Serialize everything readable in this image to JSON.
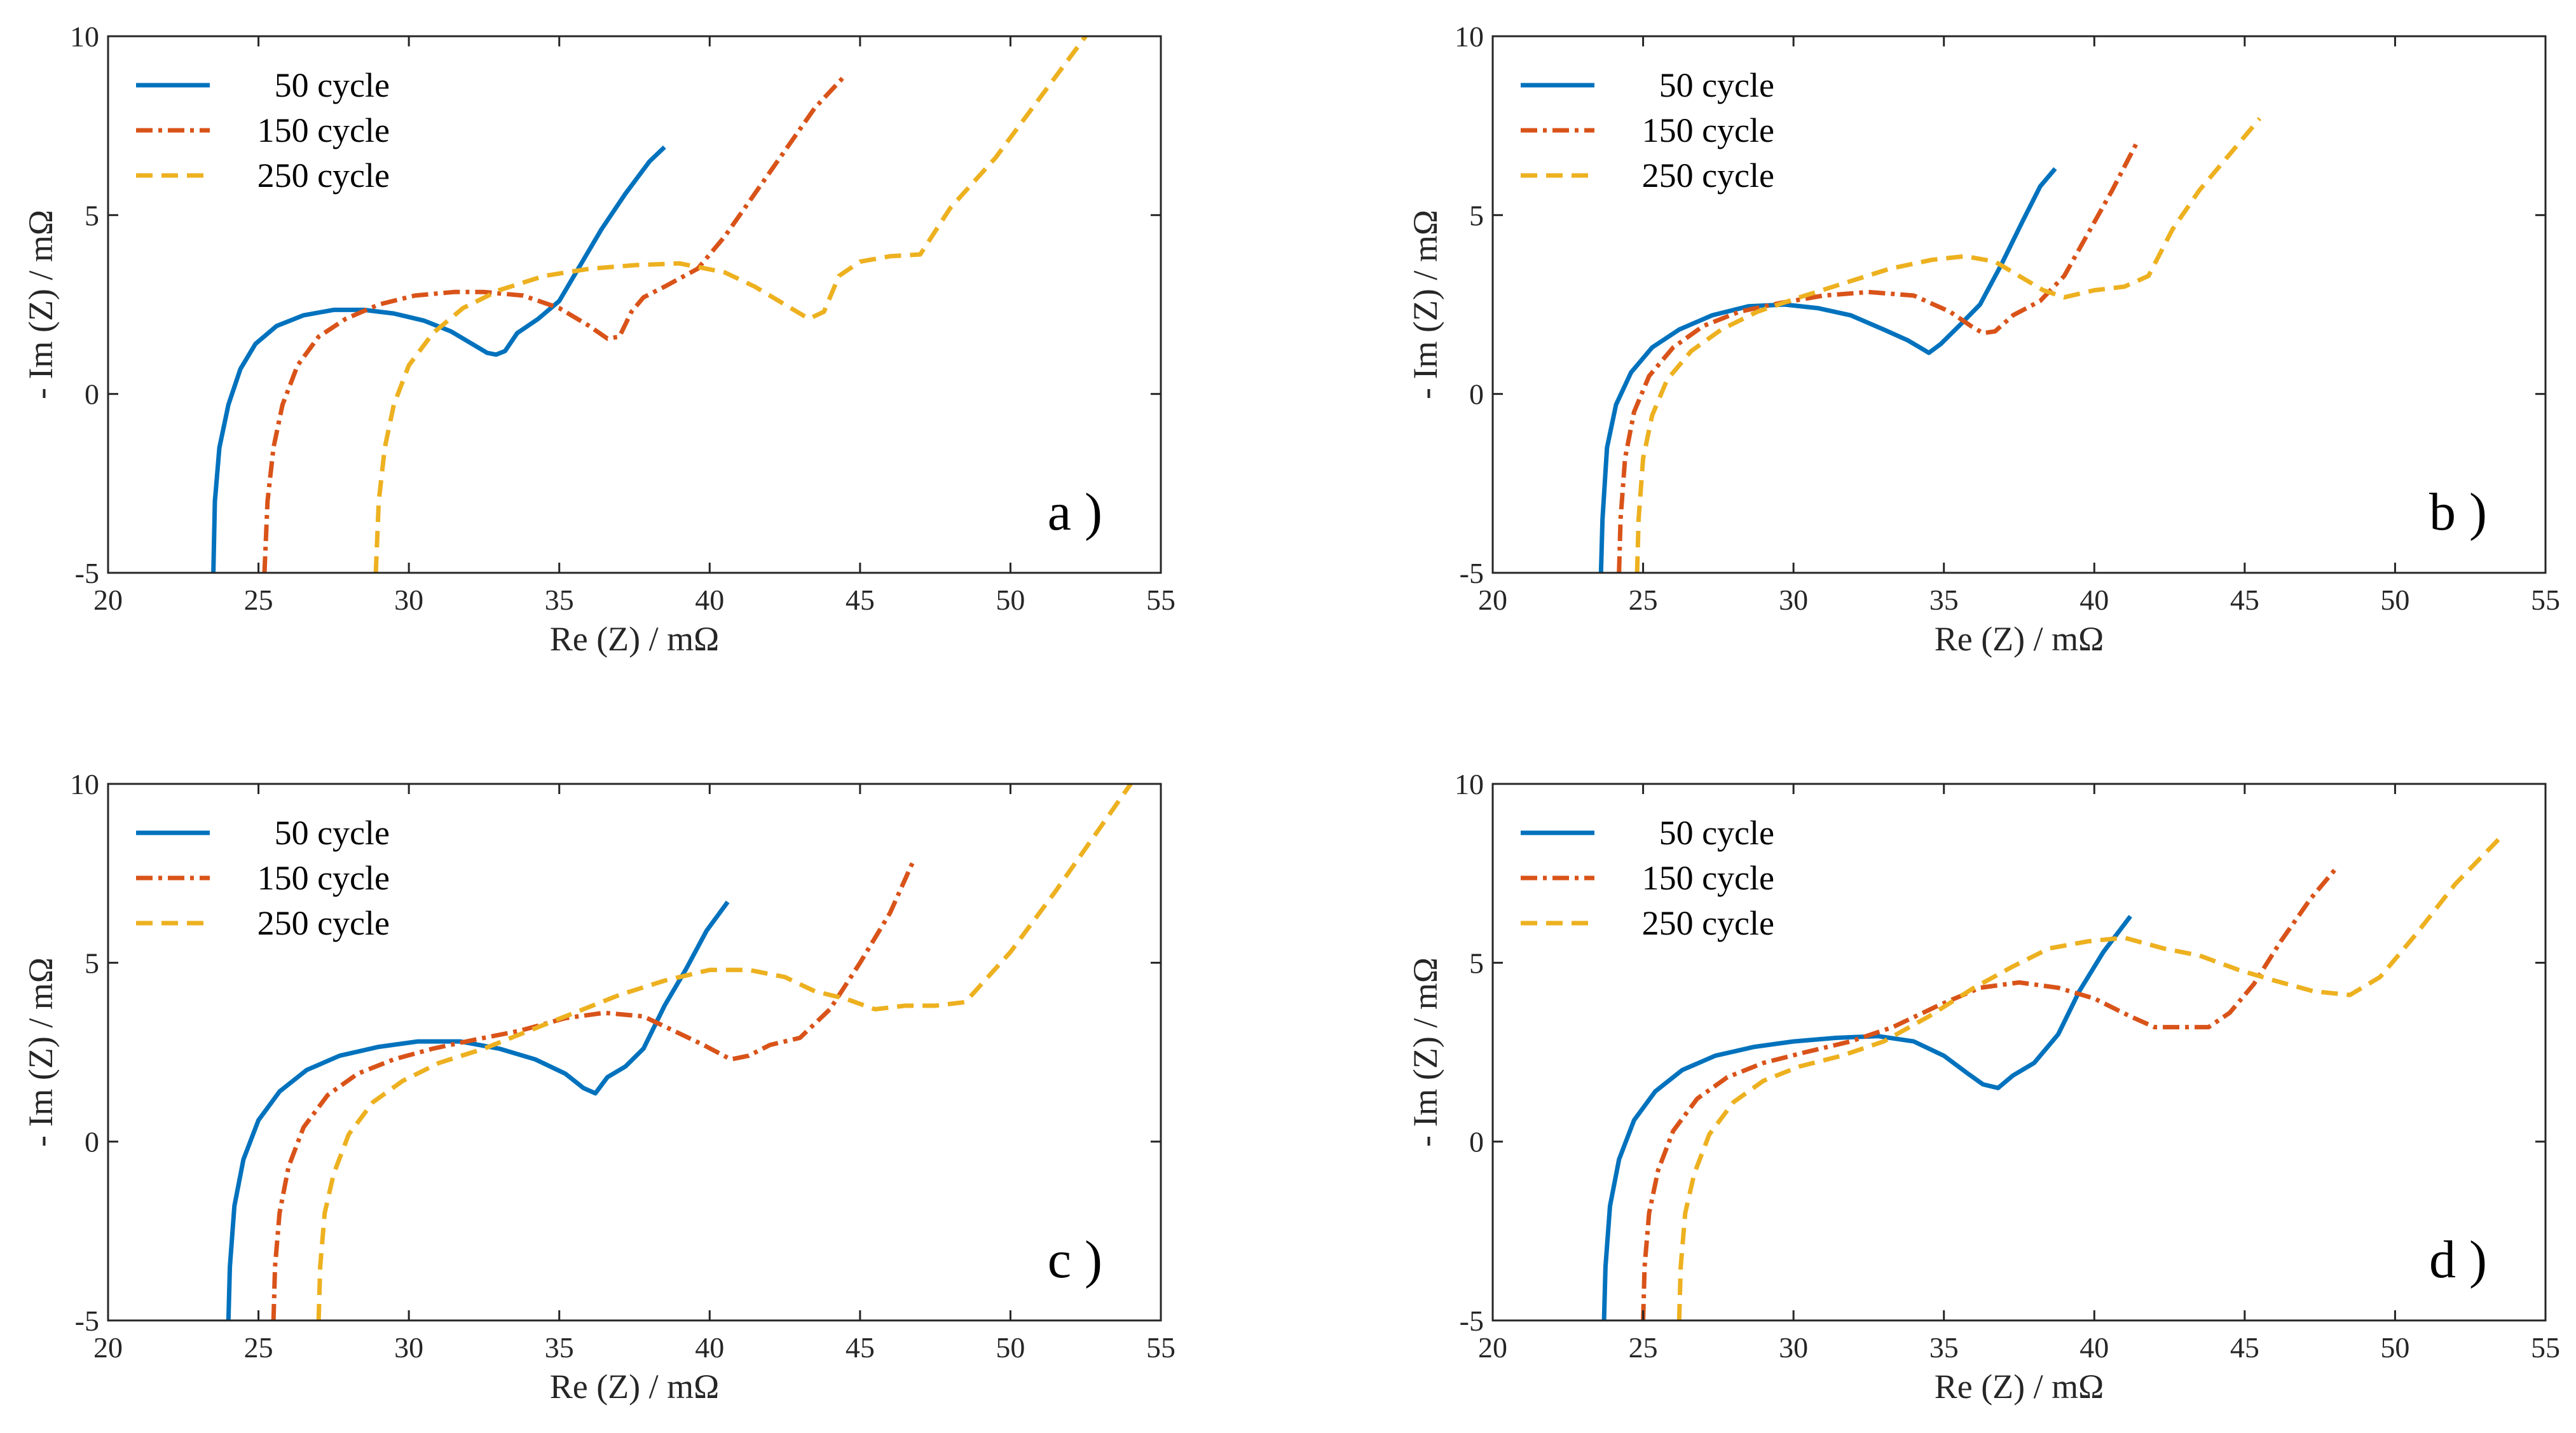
{
  "figure": {
    "xlabel": "Re (Z) / mΩ",
    "ylabel": "- Im (Z) / mΩ",
    "legend_labels": [
      "50 cycle",
      "150 cycle",
      "250 cycle"
    ],
    "colors": [
      "#0072BD",
      "#D95319",
      "#EDB120"
    ]
  },
  "chart_data": [
    {
      "type": "line",
      "panel_label": "a )",
      "xlabel": "Re (Z) / mΩ",
      "ylabel": "- Im (Z) / mΩ",
      "xlim": [
        20,
        55
      ],
      "ylim": [
        -5,
        10
      ],
      "x_ticks": [
        "20",
        "25",
        "30",
        "35",
        "40",
        "45",
        "50",
        "55"
      ],
      "y_ticks": [
        "-5",
        "0",
        "5",
        "10"
      ],
      "series": [
        {
          "name": "50 cycle",
          "color": "#0072BD",
          "style": "solid",
          "x": [
            23.5,
            23.55,
            23.7,
            24.0,
            24.4,
            24.9,
            25.6,
            26.5,
            27.5,
            28.5,
            29.5,
            30.5,
            31.4,
            32.1,
            32.6,
            32.9,
            33.2,
            33.6,
            34.3,
            35.0,
            35.7,
            36.4,
            37.2,
            38.0,
            38.5
          ],
          "y": [
            -5,
            -3,
            -1.5,
            -0.3,
            0.7,
            1.4,
            1.9,
            2.2,
            2.35,
            2.35,
            2.25,
            2.05,
            1.75,
            1.4,
            1.15,
            1.1,
            1.2,
            1.7,
            2.1,
            2.6,
            3.6,
            4.6,
            5.6,
            6.5,
            6.9
          ],
          "values": [
            -5,
            -3,
            -1.5,
            -0.3,
            0.7,
            1.4,
            1.9,
            2.2,
            2.35,
            2.35,
            2.25,
            2.05,
            1.75,
            1.4,
            1.15,
            1.1,
            1.2,
            1.7,
            2.1,
            2.6,
            3.6,
            4.6,
            5.6,
            6.5,
            6.9
          ]
        },
        {
          "name": "150 cycle",
          "color": "#D95319",
          "style": "dashdot",
          "x": [
            25.2,
            25.3,
            25.5,
            25.8,
            26.3,
            27.0,
            27.9,
            29.0,
            30.2,
            31.5,
            32.5,
            33.8,
            35.0,
            36.0,
            36.6,
            37.0,
            37.4,
            37.8,
            38.5,
            39.6,
            40.5,
            41.5,
            42.5,
            43.5,
            44.5
          ],
          "y": [
            -5,
            -3,
            -1.5,
            -0.3,
            0.8,
            1.6,
            2.1,
            2.5,
            2.75,
            2.85,
            2.85,
            2.75,
            2.4,
            1.9,
            1.55,
            1.6,
            2.3,
            2.7,
            3.0,
            3.5,
            4.4,
            5.6,
            6.8,
            8.0,
            8.9
          ],
          "values": [
            -5,
            -3,
            -1.5,
            -0.3,
            0.8,
            1.6,
            2.1,
            2.5,
            2.75,
            2.85,
            2.85,
            2.75,
            2.4,
            1.9,
            1.55,
            1.6,
            2.3,
            2.7,
            3.0,
            3.5,
            4.4,
            5.6,
            6.8,
            8.0,
            8.9
          ]
        },
        {
          "name": "250 cycle",
          "color": "#EDB120",
          "style": "dashed",
          "x": [
            28.9,
            29.0,
            29.2,
            29.5,
            30.0,
            30.8,
            31.8,
            33.0,
            34.5,
            36.0,
            37.5,
            39.0,
            40.5,
            41.5,
            42.5,
            43.3,
            43.8,
            44.3,
            45.0,
            46.0,
            47.0,
            48.0,
            49.5,
            51.0,
            52.5
          ],
          "y": [
            -5,
            -3,
            -1.5,
            -0.3,
            0.8,
            1.7,
            2.4,
            2.9,
            3.3,
            3.5,
            3.6,
            3.65,
            3.4,
            3.0,
            2.5,
            2.1,
            2.3,
            3.3,
            3.7,
            3.85,
            3.9,
            5.2,
            6.6,
            8.3,
            10.0
          ],
          "values": [
            -5,
            -3,
            -1.5,
            -0.3,
            0.8,
            1.7,
            2.4,
            2.9,
            3.3,
            3.5,
            3.6,
            3.65,
            3.4,
            3.0,
            2.5,
            2.1,
            2.3,
            3.3,
            3.7,
            3.85,
            3.9,
            5.2,
            6.6,
            8.3,
            10.0
          ]
        }
      ]
    },
    {
      "type": "line",
      "panel_label": "b )",
      "xlabel": "Re (Z) / mΩ",
      "ylabel": "- Im (Z) / mΩ",
      "xlim": [
        20,
        55
      ],
      "ylim": [
        -5,
        10
      ],
      "x_ticks": [
        "20",
        "25",
        "30",
        "35",
        "40",
        "45",
        "50",
        "55"
      ],
      "y_ticks": [
        "-5",
        "0",
        "5",
        "10"
      ],
      "series": [
        {
          "name": "50 cycle",
          "color": "#0072BD",
          "style": "solid",
          "x": [
            23.6,
            23.65,
            23.8,
            24.1,
            24.6,
            25.3,
            26.2,
            27.3,
            28.5,
            29.7,
            30.8,
            31.9,
            33.0,
            33.8,
            34.2,
            34.5,
            34.9,
            35.5,
            36.2,
            36.9,
            37.6,
            38.2,
            38.7
          ],
          "y": [
            -5,
            -3.5,
            -1.5,
            -0.3,
            0.6,
            1.3,
            1.8,
            2.2,
            2.45,
            2.5,
            2.4,
            2.2,
            1.8,
            1.5,
            1.3,
            1.15,
            1.4,
            1.9,
            2.5,
            3.6,
            4.8,
            5.8,
            6.3
          ],
          "values": [
            -5,
            -3.5,
            -1.5,
            -0.3,
            0.6,
            1.3,
            1.8,
            2.2,
            2.45,
            2.5,
            2.4,
            2.2,
            1.8,
            1.5,
            1.3,
            1.15,
            1.4,
            1.9,
            2.5,
            3.6,
            4.8,
            5.8,
            6.3
          ]
        },
        {
          "name": "150 cycle",
          "color": "#D95319",
          "style": "dashdot",
          "x": [
            24.2,
            24.25,
            24.4,
            24.7,
            25.2,
            26.0,
            27.0,
            28.2,
            29.6,
            31.0,
            32.5,
            34.0,
            35.2,
            35.9,
            36.3,
            36.7,
            37.3,
            38.2,
            39.0,
            39.8,
            40.6,
            41.4
          ],
          "y": [
            -5,
            -3.5,
            -1.8,
            -0.5,
            0.5,
            1.3,
            1.9,
            2.3,
            2.55,
            2.75,
            2.85,
            2.75,
            2.3,
            1.9,
            1.7,
            1.75,
            2.2,
            2.6,
            3.3,
            4.5,
            5.7,
            7.0
          ],
          "values": [
            -5,
            -3.5,
            -1.8,
            -0.5,
            0.5,
            1.3,
            1.9,
            2.3,
            2.55,
            2.75,
            2.85,
            2.75,
            2.3,
            1.9,
            1.7,
            1.75,
            2.2,
            2.6,
            3.3,
            4.5,
            5.7,
            7.0
          ]
        },
        {
          "name": "250 cycle",
          "color": "#EDB120",
          "style": "dashed",
          "x": [
            24.8,
            24.85,
            25.0,
            25.3,
            25.8,
            26.6,
            27.6,
            28.8,
            30.2,
            31.7,
            33.2,
            34.6,
            35.7,
            36.7,
            37.5,
            38.3,
            39.0,
            40.0,
            41.0,
            41.8,
            42.6,
            43.5,
            44.5,
            45.5
          ],
          "y": [
            -5,
            -3.5,
            -1.8,
            -0.6,
            0.4,
            1.2,
            1.8,
            2.3,
            2.7,
            3.1,
            3.5,
            3.75,
            3.85,
            3.7,
            3.3,
            2.9,
            2.7,
            2.9,
            3.0,
            3.3,
            4.6,
            5.7,
            6.7,
            7.7
          ],
          "values": [
            -5,
            -3.5,
            -1.8,
            -0.6,
            0.4,
            1.2,
            1.8,
            2.3,
            2.7,
            3.1,
            3.5,
            3.75,
            3.85,
            3.7,
            3.3,
            2.9,
            2.7,
            2.9,
            3.0,
            3.3,
            4.6,
            5.7,
            6.7,
            7.7
          ]
        }
      ]
    },
    {
      "type": "line",
      "panel_label": "c )",
      "xlabel": "Re (Z) / mΩ",
      "ylabel": "- Im (Z) / mΩ",
      "xlim": [
        20,
        55
      ],
      "ylim": [
        -5,
        10
      ],
      "x_ticks": [
        "20",
        "25",
        "30",
        "35",
        "40",
        "45",
        "50",
        "55"
      ],
      "y_ticks": [
        "-5",
        "0",
        "5",
        "10"
      ],
      "series": [
        {
          "name": "50 cycle",
          "color": "#0072BD",
          "style": "solid",
          "x": [
            24.0,
            24.05,
            24.2,
            24.5,
            25.0,
            25.7,
            26.6,
            27.7,
            29.0,
            30.3,
            31.7,
            33.0,
            34.2,
            35.2,
            35.8,
            36.2,
            36.6,
            37.2,
            37.8,
            38.5,
            39.2,
            39.9,
            40.6
          ],
          "y": [
            -5,
            -3.5,
            -1.8,
            -0.5,
            0.6,
            1.4,
            2.0,
            2.4,
            2.65,
            2.8,
            2.8,
            2.6,
            2.3,
            1.9,
            1.5,
            1.35,
            1.8,
            2.1,
            2.6,
            3.8,
            4.8,
            5.9,
            6.7
          ],
          "values": [
            -5,
            -3.5,
            -1.8,
            -0.5,
            0.6,
            1.4,
            2.0,
            2.4,
            2.65,
            2.8,
            2.8,
            2.6,
            2.3,
            1.9,
            1.5,
            1.35,
            1.8,
            2.1,
            2.6,
            3.8,
            4.8,
            5.9,
            6.7
          ]
        },
        {
          "name": "150 cycle",
          "color": "#D95319",
          "style": "dashdot",
          "x": [
            25.5,
            25.55,
            25.7,
            26.0,
            26.5,
            27.3,
            28.3,
            29.5,
            30.8,
            32.2,
            33.7,
            35.2,
            36.5,
            37.8,
            38.8,
            39.8,
            40.7,
            41.3,
            42.0,
            43.0,
            44.0,
            45.0,
            46.0,
            46.8
          ],
          "y": [
            -5,
            -3.5,
            -2.0,
            -0.7,
            0.4,
            1.3,
            1.9,
            2.3,
            2.6,
            2.85,
            3.1,
            3.45,
            3.6,
            3.5,
            3.1,
            2.7,
            2.3,
            2.4,
            2.7,
            2.9,
            3.7,
            5.0,
            6.4,
            7.9
          ],
          "values": [
            -5,
            -3.5,
            -2.0,
            -0.7,
            0.4,
            1.3,
            1.9,
            2.3,
            2.6,
            2.85,
            3.1,
            3.45,
            3.6,
            3.5,
            3.1,
            2.7,
            2.3,
            2.4,
            2.7,
            2.9,
            3.7,
            5.0,
            6.4,
            7.9
          ]
        },
        {
          "name": "250 cycle",
          "color": "#EDB120",
          "style": "dashed",
          "x": [
            27.0,
            27.05,
            27.2,
            27.5,
            28.0,
            28.8,
            29.8,
            31.0,
            32.5,
            34.0,
            35.5,
            37.0,
            38.5,
            40.0,
            41.3,
            42.5,
            43.5,
            44.5,
            45.5,
            46.5,
            47.5,
            48.5,
            50.0,
            51.5,
            53.0,
            54.0
          ],
          "y": [
            -5,
            -3.5,
            -2.0,
            -0.9,
            0.2,
            1.1,
            1.7,
            2.2,
            2.6,
            3.1,
            3.6,
            4.1,
            4.5,
            4.8,
            4.8,
            4.6,
            4.2,
            4.0,
            3.7,
            3.8,
            3.8,
            3.9,
            5.3,
            7.0,
            8.8,
            10.0
          ],
          "values": [
            -5,
            -3.5,
            -2.0,
            -0.9,
            0.2,
            1.1,
            1.7,
            2.2,
            2.6,
            3.1,
            3.6,
            4.1,
            4.5,
            4.8,
            4.8,
            4.6,
            4.2,
            4.0,
            3.7,
            3.8,
            3.8,
            3.9,
            5.3,
            7.0,
            8.8,
            10.0
          ]
        }
      ]
    },
    {
      "type": "line",
      "panel_label": "d )",
      "xlabel": "Re (Z) / mΩ",
      "ylabel": "- Im (Z) / mΩ",
      "xlim": [
        20,
        55
      ],
      "ylim": [
        -5,
        10
      ],
      "x_ticks": [
        "20",
        "25",
        "30",
        "35",
        "40",
        "45",
        "50",
        "55"
      ],
      "y_ticks": [
        "-5",
        "0",
        "5",
        "10"
      ],
      "series": [
        {
          "name": "50 cycle",
          "color": "#0072BD",
          "style": "solid",
          "x": [
            23.7,
            23.75,
            23.9,
            24.2,
            24.7,
            25.4,
            26.3,
            27.4,
            28.7,
            30.0,
            31.4,
            32.8,
            34.0,
            35.0,
            35.8,
            36.3,
            36.8,
            37.3,
            38.0,
            38.8,
            39.5,
            40.3,
            41.2
          ],
          "y": [
            -5,
            -3.5,
            -1.8,
            -0.5,
            0.6,
            1.4,
            2.0,
            2.4,
            2.65,
            2.8,
            2.9,
            2.95,
            2.8,
            2.4,
            1.9,
            1.6,
            1.5,
            1.85,
            2.2,
            3.0,
            4.2,
            5.3,
            6.3
          ],
          "values": [
            -5,
            -3.5,
            -1.8,
            -0.5,
            0.6,
            1.4,
            2.0,
            2.4,
            2.65,
            2.8,
            2.9,
            2.95,
            2.8,
            2.4,
            1.9,
            1.6,
            1.5,
            1.85,
            2.2,
            3.0,
            4.2,
            5.3,
            6.3
          ]
        },
        {
          "name": "150 cycle",
          "color": "#D95319",
          "style": "dashdot",
          "x": [
            25.0,
            25.05,
            25.2,
            25.5,
            26.0,
            26.8,
            27.8,
            29.0,
            30.4,
            31.9,
            33.3,
            34.8,
            36.2,
            37.5,
            38.8,
            40.0,
            41.2,
            42.0,
            43.0,
            43.8,
            44.5,
            45.3,
            46.2,
            47.2,
            48.1
          ],
          "y": [
            -5,
            -3.5,
            -2.0,
            -0.8,
            0.3,
            1.2,
            1.8,
            2.2,
            2.5,
            2.8,
            3.2,
            3.8,
            4.3,
            4.45,
            4.3,
            4.0,
            3.5,
            3.2,
            3.2,
            3.2,
            3.6,
            4.4,
            5.6,
            6.8,
            7.7
          ],
          "values": [
            -5,
            -3.5,
            -2.0,
            -0.8,
            0.3,
            1.2,
            1.8,
            2.2,
            2.5,
            2.8,
            3.2,
            3.8,
            4.3,
            4.45,
            4.3,
            4.0,
            3.5,
            3.2,
            3.2,
            3.2,
            3.6,
            4.4,
            5.6,
            6.8,
            7.7
          ]
        },
        {
          "name": "250 cycle",
          "color": "#EDB120",
          "style": "dashed",
          "x": [
            26.2,
            26.25,
            26.4,
            26.7,
            27.2,
            28.0,
            29.0,
            30.2,
            31.6,
            33.0,
            34.5,
            36.0,
            37.3,
            38.5,
            39.8,
            41.0,
            42.3,
            43.5,
            44.8,
            46.0,
            47.3,
            48.5,
            49.5,
            50.7,
            52.0,
            53.5
          ],
          "y": [
            -5,
            -3.5,
            -2.0,
            -0.9,
            0.2,
            1.1,
            1.7,
            2.1,
            2.4,
            2.8,
            3.5,
            4.3,
            4.9,
            5.4,
            5.6,
            5.7,
            5.4,
            5.2,
            4.8,
            4.5,
            4.2,
            4.1,
            4.6,
            5.8,
            7.2,
            8.5
          ],
          "values": [
            -5,
            -3.5,
            -2.0,
            -0.9,
            0.2,
            1.1,
            1.7,
            2.1,
            2.4,
            2.8,
            3.5,
            4.3,
            4.9,
            5.4,
            5.6,
            5.7,
            5.4,
            5.2,
            4.8,
            4.5,
            4.2,
            4.1,
            4.6,
            5.8,
            7.2,
            8.5
          ]
        }
      ]
    }
  ]
}
